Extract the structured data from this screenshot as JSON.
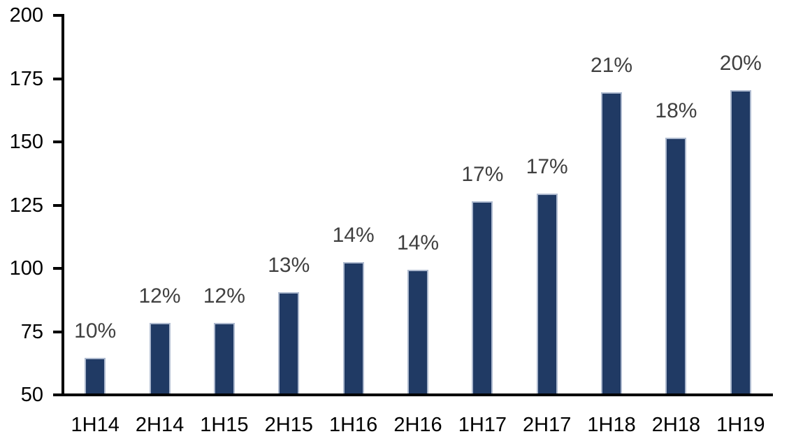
{
  "chart_data": {
    "type": "bar",
    "title": "",
    "xlabel": "",
    "ylabel": "",
    "categories": [
      "1H14",
      "2H14",
      "1H15",
      "2H15",
      "1H16",
      "2H16",
      "1H17",
      "2H17",
      "1H18",
      "2H18",
      "1H19"
    ],
    "values": [
      64,
      78,
      78,
      90,
      102,
      99,
      126,
      129,
      169,
      151,
      170
    ],
    "bar_labels": [
      "10%",
      "12%",
      "12%",
      "13%",
      "14%",
      "14%",
      "17%",
      "17%",
      "21%",
      "18%",
      "20%"
    ],
    "ylim": [
      50,
      200
    ],
    "yticks": [
      50,
      75,
      100,
      125,
      150,
      175,
      200
    ],
    "grid": false,
    "legend": "none",
    "colors": {
      "bar_fill": "#203A64",
      "bar_border": "#AEBACF",
      "data_label": "#404040",
      "axis_label": "#000000",
      "axis_line": "#000000",
      "background": "#FFFFFF"
    }
  }
}
